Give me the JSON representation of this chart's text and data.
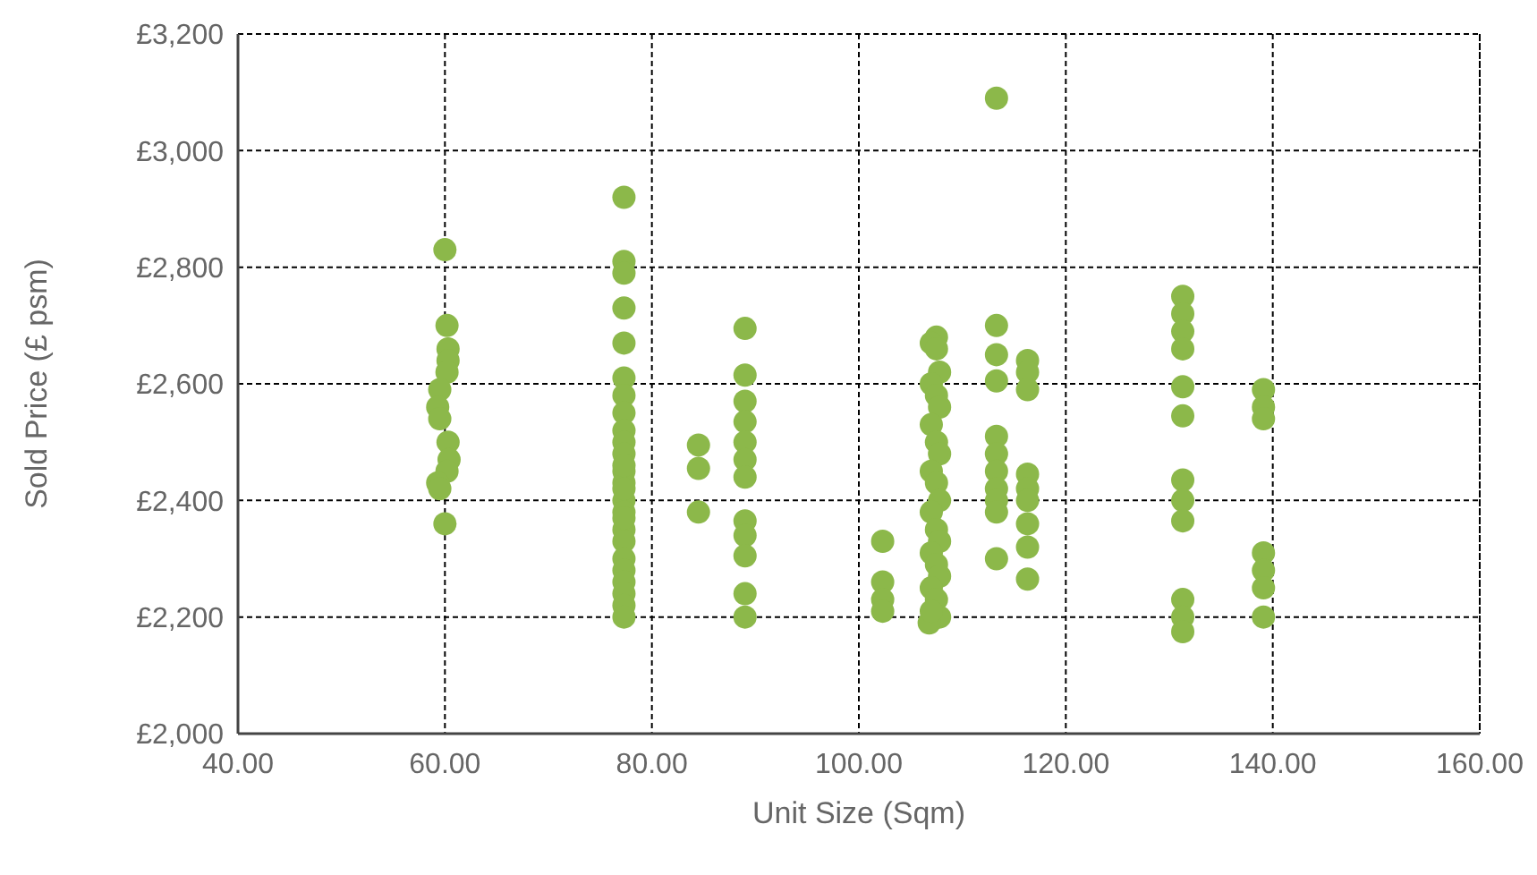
{
  "chart_data": {
    "type": "scatter",
    "xlabel": "Unit Size (Sqm)",
    "ylabel": "Sold Price (£ psm)",
    "xlim": [
      40,
      160
    ],
    "ylim": [
      2000,
      3200
    ],
    "xticks": [
      {
        "value": 40,
        "label": "40.00"
      },
      {
        "value": 60,
        "label": "60.00"
      },
      {
        "value": 80,
        "label": "80.00"
      },
      {
        "value": 100,
        "label": "100.00"
      },
      {
        "value": 120,
        "label": "120.00"
      },
      {
        "value": 140,
        "label": "140.00"
      },
      {
        "value": 160,
        "label": "160.00"
      }
    ],
    "yticks": [
      {
        "value": 2000,
        "label": "£2,000"
      },
      {
        "value": 2200,
        "label": "£2,200"
      },
      {
        "value": 2400,
        "label": "£2,400"
      },
      {
        "value": 2600,
        "label": "£2,600"
      },
      {
        "value": 2800,
        "label": "£2,800"
      },
      {
        "value": 3000,
        "label": "£3,000"
      },
      {
        "value": 3200,
        "label": "£3,200"
      }
    ],
    "grid": true,
    "marker": "circle",
    "series": [
      {
        "color": "#8cb84a",
        "x": [
          60,
          60.2,
          60.3,
          60.3,
          60.2,
          59.5,
          59.3,
          59.5,
          60.3,
          60.4,
          60.2,
          59.3,
          59.5,
          60,
          77.3,
          77.3,
          77.3,
          77.3,
          77.3,
          77.3,
          77.3,
          77.3,
          77.3,
          77.3,
          77.3,
          77.3,
          77.3,
          77.3,
          77.3,
          77.3,
          77.3,
          77.3,
          77.3,
          77.3,
          77.3,
          77.3,
          77.3,
          77.3,
          77.3,
          77.3,
          84.5,
          84.5,
          84.5,
          89,
          89,
          89,
          89,
          89,
          89,
          89,
          89,
          89,
          89,
          89,
          89,
          102.3,
          102.3,
          102.3,
          102.3,
          107.5,
          107,
          107.5,
          107.8,
          107,
          107.5,
          107.8,
          107,
          107.5,
          107.8,
          107,
          107.5,
          107.8,
          107,
          107.5,
          107.8,
          107,
          107.5,
          107.8,
          107,
          107.5,
          107.8,
          106.8,
          107,
          113.3,
          113.3,
          113.3,
          113.3,
          113.3,
          113.3,
          113.3,
          113.3,
          113.3,
          113.3,
          113.3,
          116.3,
          116.3,
          116.3,
          116.3,
          116.3,
          116.3,
          116.3,
          116.3,
          116.3,
          131.3,
          131.3,
          131.3,
          131.3,
          131.3,
          131.3,
          131.3,
          131.3,
          131.3,
          131.3,
          131.3,
          131.3,
          139.1,
          139.1,
          139.1,
          139.1,
          139.1,
          139.1,
          139.1
        ],
        "values": [
          2830,
          2700,
          2660,
          2640,
          2620,
          2590,
          2560,
          2540,
          2500,
          2470,
          2450,
          2430,
          2420,
          2360,
          2920,
          2810,
          2790,
          2730,
          2670,
          2610,
          2580,
          2550,
          2520,
          2500,
          2480,
          2450,
          2430,
          2400,
          2380,
          2350,
          2330,
          2300,
          2280,
          2260,
          2240,
          2220,
          2200,
          2370,
          2420,
          2460,
          2495,
          2455,
          2380,
          2695,
          2615,
          2570,
          2535,
          2500,
          2470,
          2440,
          2365,
          2340,
          2305,
          2240,
          2200,
          2330,
          2260,
          2230,
          2210,
          2680,
          2670,
          2660,
          2620,
          2600,
          2580,
          2560,
          2530,
          2500,
          2480,
          2450,
          2430,
          2400,
          2380,
          2350,
          2330,
          2310,
          2290,
          2270,
          2250,
          2230,
          2200,
          2190,
          2210,
          3090,
          2700,
          2650,
          2605,
          2510,
          2480,
          2450,
          2420,
          2400,
          2380,
          2300,
          2640,
          2620,
          2590,
          2445,
          2420,
          2400,
          2360,
          2320,
          2265,
          2750,
          2720,
          2690,
          2660,
          2595,
          2545,
          2435,
          2400,
          2365,
          2230,
          2200,
          2175,
          2590,
          2560,
          2540,
          2310,
          2280,
          2250,
          2200
        ]
      }
    ]
  }
}
